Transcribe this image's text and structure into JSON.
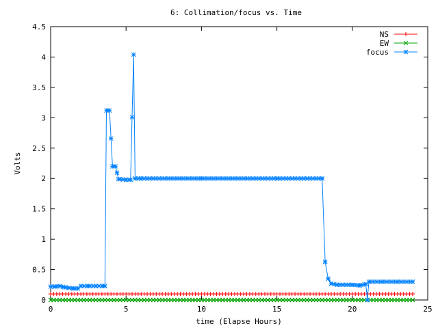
{
  "chart_data": {
    "type": "line",
    "title": "6: Collimation/focus vs. Time",
    "xlabel": "time (Elapse Hours)",
    "ylabel": "Volts",
    "xlim": [
      0,
      25
    ],
    "ylim": [
      0,
      4.5
    ],
    "xticks": [
      0,
      5,
      10,
      15,
      20,
      25
    ],
    "yticks": [
      0,
      0.5,
      1,
      1.5,
      2,
      2.5,
      3,
      3.5,
      4,
      4.5
    ],
    "legend_position": "top-right",
    "grid": false,
    "series": [
      {
        "name": "NS",
        "color": "#ff0000",
        "marker": "plus",
        "x": [
          0,
          24
        ],
        "y": [
          0.1,
          0.1
        ]
      },
      {
        "name": "EW",
        "color": "#00a000",
        "marker": "cross",
        "x": [
          0,
          24
        ],
        "y": [
          0.0,
          0.0
        ]
      },
      {
        "name": "focus",
        "color": "#0080ff",
        "marker": "star",
        "x": [
          0,
          0.3,
          0.6,
          0.9,
          1.2,
          1.5,
          1.8,
          2.0,
          2.5,
          3.0,
          3.5,
          3.6,
          3.7,
          3.9,
          4.1,
          4.3,
          4.5,
          5.0,
          5.3,
          5.5,
          5.6,
          6.0,
          10.0,
          15.0,
          18.0,
          18.2,
          18.4,
          18.6,
          19.0,
          20.0,
          20.5,
          20.9,
          21.0,
          21.1,
          22.0,
          23.0,
          24.0
        ],
        "y": [
          0.22,
          0.22,
          0.23,
          0.21,
          0.2,
          0.19,
          0.19,
          0.23,
          0.23,
          0.23,
          0.23,
          0.23,
          3.12,
          3.12,
          2.2,
          2.2,
          1.99,
          1.98,
          1.98,
          4.04,
          2.0,
          2.0,
          2.0,
          2.0,
          2.0,
          0.63,
          0.35,
          0.27,
          0.25,
          0.25,
          0.24,
          0.26,
          0.0,
          0.3,
          0.3,
          0.3,
          0.3
        ]
      }
    ]
  }
}
